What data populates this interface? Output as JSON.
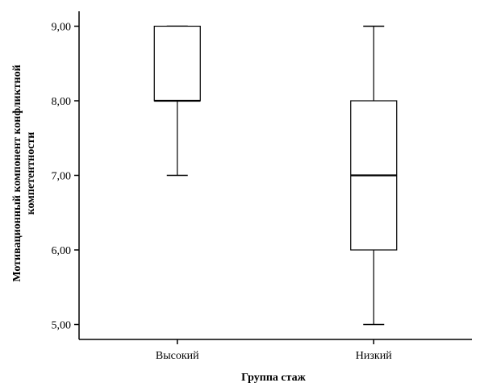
{
  "chart_data": {
    "type": "boxplot",
    "xlabel": "Группа стаж",
    "ylabel_lines": [
      "Мотивационный компонент конфликтной",
      "компетентности"
    ],
    "categories": [
      "Высокий",
      "Низкий"
    ],
    "ylim": [
      4.8,
      9.2
    ],
    "yticks": [
      5,
      6,
      7,
      8,
      9
    ],
    "ytick_labels": [
      "5,00",
      "6,00",
      "7,00",
      "8,00",
      "9,00"
    ],
    "boxes": [
      {
        "category": "Высокий",
        "min": 7.0,
        "q1": 8.0,
        "median": 8.0,
        "q3": 9.0,
        "max": 9.0
      },
      {
        "category": "Низкий",
        "min": 5.0,
        "q1": 6.0,
        "median": 7.0,
        "q3": 8.0,
        "max": 9.0
      }
    ],
    "grid": false,
    "legend": "none"
  }
}
